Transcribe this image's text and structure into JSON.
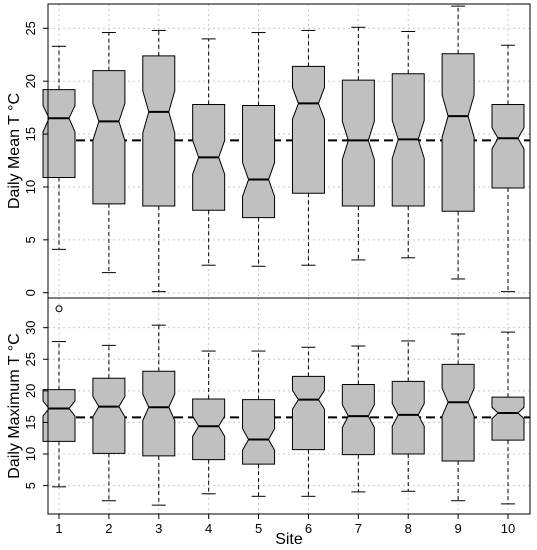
{
  "chart_data": {
    "type": "boxplot",
    "xlabel": "Site",
    "categories": [
      "1",
      "2",
      "3",
      "4",
      "5",
      "6",
      "7",
      "8",
      "9",
      "10"
    ],
    "grid": true,
    "notched": true,
    "colors": {
      "box_fill": "#c0c0c0",
      "grid": "#c8c8c8"
    },
    "panels": [
      {
        "ylabel": "Daily Mean T °C",
        "ylim": [
          -0.5,
          27.3
        ],
        "yticks": [
          0,
          5,
          10,
          15,
          20,
          25
        ],
        "reference_line": 14.4,
        "boxes": [
          {
            "site": "1",
            "whisker_low": 4.1,
            "q1": 10.9,
            "median": 16.5,
            "q3": 19.2,
            "whisker_high": 23.3,
            "notch_low": 15.2,
            "notch_high": 17.7,
            "outliers": []
          },
          {
            "site": "2",
            "whisker_low": 1.9,
            "q1": 8.4,
            "median": 16.2,
            "q3": 21.0,
            "whisker_high": 24.6,
            "notch_low": 14.4,
            "notch_high": 17.9,
            "outliers": []
          },
          {
            "site": "3",
            "whisker_low": 0.1,
            "q1": 8.2,
            "median": 17.1,
            "q3": 22.4,
            "whisker_high": 24.8,
            "notch_low": 15.1,
            "notch_high": 19.1,
            "outliers": []
          },
          {
            "site": "4",
            "whisker_low": 2.6,
            "q1": 7.8,
            "median": 12.8,
            "q3": 17.8,
            "whisker_high": 24.0,
            "notch_low": 11.2,
            "notch_high": 14.4,
            "outliers": []
          },
          {
            "site": "5",
            "whisker_low": 2.5,
            "q1": 7.1,
            "median": 10.7,
            "q3": 17.7,
            "whisker_high": 24.6,
            "notch_low": 9.1,
            "notch_high": 12.3,
            "outliers": []
          },
          {
            "site": "6",
            "whisker_low": 2.6,
            "q1": 9.4,
            "median": 17.9,
            "q3": 21.4,
            "whisker_high": 24.8,
            "notch_low": 16.4,
            "notch_high": 19.4,
            "outliers": []
          },
          {
            "site": "7",
            "whisker_low": 3.1,
            "q1": 8.2,
            "median": 14.4,
            "q3": 20.1,
            "whisker_high": 25.1,
            "notch_low": 12.6,
            "notch_high": 16.2,
            "outliers": []
          },
          {
            "site": "8",
            "whisker_low": 3.3,
            "q1": 8.2,
            "median": 14.5,
            "q3": 20.7,
            "whisker_high": 24.7,
            "notch_low": 12.7,
            "notch_high": 16.3,
            "outliers": []
          },
          {
            "site": "9",
            "whisker_low": 1.3,
            "q1": 7.7,
            "median": 16.7,
            "q3": 22.6,
            "whisker_high": 27.1,
            "notch_low": 14.7,
            "notch_high": 18.7,
            "outliers": []
          },
          {
            "site": "10",
            "whisker_low": 0.1,
            "q1": 9.9,
            "median": 14.6,
            "q3": 17.8,
            "whisker_high": 23.4,
            "notch_low": 13.6,
            "notch_high": 15.6,
            "outliers": []
          }
        ]
      },
      {
        "ylabel": "Daily Maximum  T °C",
        "ylim": [
          0.5,
          34.7
        ],
        "yticks": [
          5,
          10,
          15,
          20,
          25,
          30
        ],
        "reference_line": 15.8,
        "boxes": [
          {
            "site": "1",
            "whisker_low": 4.8,
            "q1": 12.0,
            "median": 17.2,
            "q3": 20.2,
            "whisker_high": 27.8,
            "notch_low": 16.0,
            "notch_high": 18.4,
            "outliers": [
              33.0
            ]
          },
          {
            "site": "2",
            "whisker_low": 2.6,
            "q1": 10.1,
            "median": 17.5,
            "q3": 22.0,
            "whisker_high": 27.2,
            "notch_low": 15.9,
            "notch_high": 19.1,
            "outliers": []
          },
          {
            "site": "3",
            "whisker_low": 1.9,
            "q1": 9.7,
            "median": 17.4,
            "q3": 23.1,
            "whisker_high": 30.4,
            "notch_low": 15.3,
            "notch_high": 19.5,
            "outliers": []
          },
          {
            "site": "4",
            "whisker_low": 3.7,
            "q1": 9.1,
            "median": 14.4,
            "q3": 18.7,
            "whisker_high": 26.3,
            "notch_low": 12.8,
            "notch_high": 16.0,
            "outliers": []
          },
          {
            "site": "5",
            "whisker_low": 3.3,
            "q1": 8.4,
            "median": 12.3,
            "q3": 18.6,
            "whisker_high": 26.3,
            "notch_low": 10.6,
            "notch_high": 14.0,
            "outliers": []
          },
          {
            "site": "6",
            "whisker_low": 3.3,
            "q1": 10.7,
            "median": 18.6,
            "q3": 22.3,
            "whisker_high": 26.9,
            "notch_low": 17.1,
            "notch_high": 20.1,
            "outliers": []
          },
          {
            "site": "7",
            "whisker_low": 4.0,
            "q1": 9.9,
            "median": 16.0,
            "q3": 21.0,
            "whisker_high": 27.1,
            "notch_low": 14.2,
            "notch_high": 17.8,
            "outliers": []
          },
          {
            "site": "8",
            "whisker_low": 4.1,
            "q1": 10.0,
            "median": 16.2,
            "q3": 21.5,
            "whisker_high": 27.9,
            "notch_low": 14.4,
            "notch_high": 18.0,
            "outliers": []
          },
          {
            "site": "9",
            "whisker_low": 2.6,
            "q1": 8.9,
            "median": 18.2,
            "q3": 24.2,
            "whisker_high": 29.0,
            "notch_low": 16.0,
            "notch_high": 20.4,
            "outliers": []
          },
          {
            "site": "10",
            "whisker_low": 2.1,
            "q1": 12.2,
            "median": 16.5,
            "q3": 19.0,
            "whisker_high": 29.3,
            "notch_low": 15.6,
            "notch_high": 17.4,
            "outliers": []
          }
        ]
      }
    ]
  }
}
